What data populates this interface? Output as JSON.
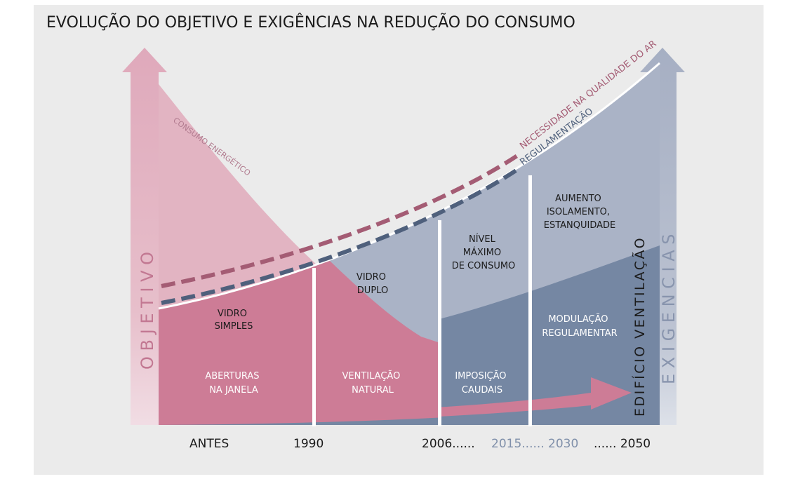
{
  "title": "EVOLUÇÃO DO OBJETIVO E EXIGÊNCIAS NA REDUÇÃO DO CONSUMO",
  "axes": {
    "left": "O B J E T I V O",
    "right": "E X I G E N C I A S",
    "inner_right": "EDIFÍCIO VENTILAÇÃO"
  },
  "curves": {
    "consumo": "CONSUMO ENERGÉTICO",
    "qualidade_ar": "NECESSIDADE NA QUALIDADE DO AR",
    "regulamentacao": "REGULAMENTAÇÃO"
  },
  "phases": {
    "p1_top": [
      "VIDRO",
      "SIMPLES"
    ],
    "p1_bottom": [
      "ABERTURAS",
      "NA JANELA"
    ],
    "p2_top": [
      "VIDRO",
      "DUPLO"
    ],
    "p2_bottom": [
      "VENTILAÇÃO",
      "NATURAL"
    ],
    "p3_top": [
      "NÍVEL",
      "MÁXIMO",
      "DE CONSUMO"
    ],
    "p3_bottom": [
      "IMPOSIÇÃO",
      "CAUDAIS"
    ],
    "p4_top": [
      "AUMENTO",
      "ISOLAMENTO,",
      "ESTANQUIDADE"
    ],
    "p4_bottom": [
      "MODULAÇÃO",
      "REGULAMENTAR"
    ]
  },
  "timeline": {
    "antes": "ANTES",
    "y1990": "1990",
    "y2006": "2006......",
    "y2015": "2015......",
    "y2030": "2030",
    "y2050": "...... 2050"
  },
  "colors": {
    "pink_light": "#e2b4c2",
    "pink": "#cd7c96",
    "pink_dash": "#a45c74",
    "blue_light": "#aab3c6",
    "blue": "#7587a3",
    "blue_dash": "#4f607c",
    "gray_text": "#8090aa"
  }
}
